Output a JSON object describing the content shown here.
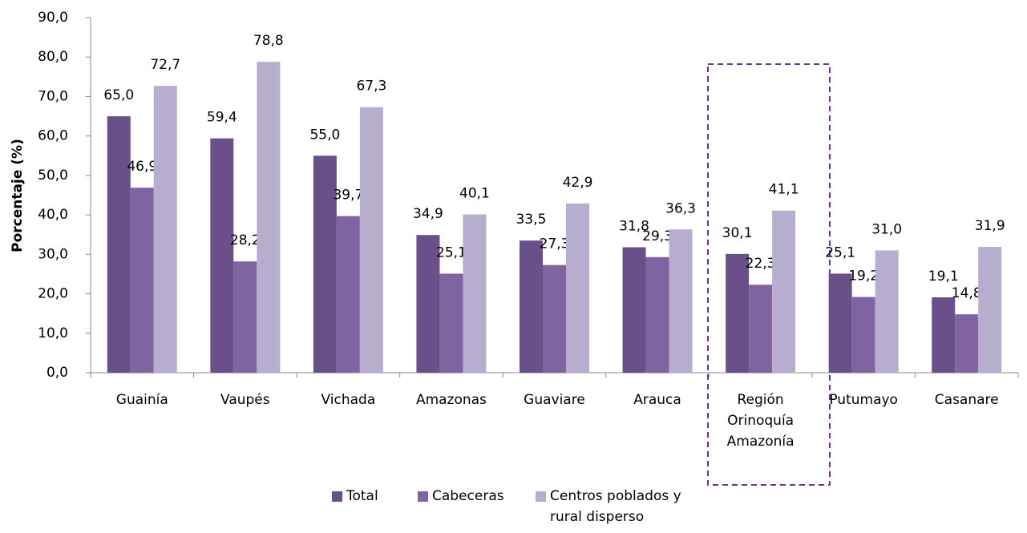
{
  "chart_data": {
    "type": "bar",
    "y_label": "Porcentaje (%)",
    "categories": [
      "Guainía",
      "Vaupés",
      "Vichada",
      "Amazonas",
      "Guaviare",
      "Arauca",
      "Región Orinoquía Amazonía",
      "Putumayo",
      "Casanare"
    ],
    "series": [
      {
        "name": "Total",
        "color": "#6a5088",
        "values": [
          65.0,
          59.4,
          55.0,
          34.9,
          33.5,
          31.8,
          30.1,
          25.1,
          19.1
        ],
        "value_labels": [
          "65,0",
          "59,4",
          "55,0",
          "34,9",
          "33,5",
          "31,8",
          "30,1",
          "25,1",
          "19,1"
        ]
      },
      {
        "name": "Cabeceras",
        "color": "#8064a2",
        "values": [
          46.9,
          28.2,
          39.7,
          25.1,
          27.3,
          29.3,
          22.3,
          19.2,
          14.8
        ],
        "value_labels": [
          "46,9",
          "28,2",
          "39,7",
          "25,1",
          "27,3",
          "29,3",
          "22,3",
          "19,2",
          "14,8"
        ]
      },
      {
        "name": "Centros poblados y rural disperso",
        "color": "#b7aecf",
        "values": [
          72.7,
          78.8,
          67.3,
          40.1,
          42.9,
          36.3,
          41.1,
          31.0,
          31.9
        ],
        "value_labels": [
          "72,7",
          "78,8",
          "67,3",
          "40,1",
          "42,9",
          "36,3",
          "41,1",
          "31,0",
          "31,9"
        ]
      }
    ],
    "ylim": [
      0,
      90
    ],
    "yticks": [
      {
        "value": 0,
        "label": "0,0"
      },
      {
        "value": 10,
        "label": "10,0"
      },
      {
        "value": 20,
        "label": "20,0"
      },
      {
        "value": 30,
        "label": "30,0"
      },
      {
        "value": 40,
        "label": "40,0"
      },
      {
        "value": 50,
        "label": "50,0"
      },
      {
        "value": 60,
        "label": "60,0"
      },
      {
        "value": 70,
        "label": "70,0"
      },
      {
        "value": 80,
        "label": "80,0"
      },
      {
        "value": 90,
        "label": "90,0"
      }
    ],
    "legend": "bottom"
  }
}
